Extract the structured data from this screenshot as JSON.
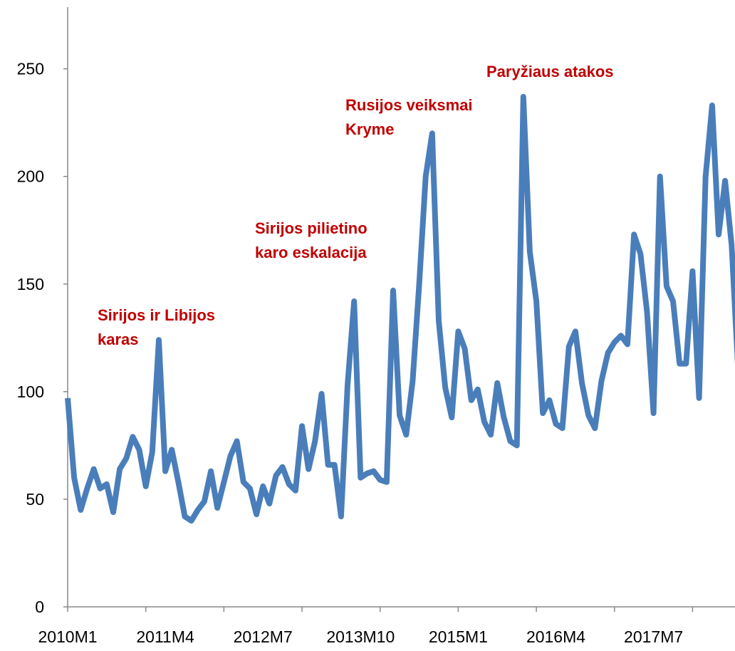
{
  "chart_data": {
    "type": "line",
    "categories": [
      "2010M1",
      null,
      null,
      null,
      null,
      null,
      null,
      null,
      null,
      null,
      null,
      null,
      null,
      null,
      null,
      "2011M4",
      null,
      null,
      null,
      null,
      null,
      null,
      null,
      null,
      null,
      null,
      null,
      null,
      null,
      null,
      "2012M7",
      null,
      null,
      null,
      null,
      null,
      null,
      null,
      null,
      null,
      null,
      null,
      null,
      null,
      null,
      "2013M10",
      null,
      null,
      null,
      null,
      null,
      null,
      null,
      null,
      null,
      null,
      null,
      null,
      null,
      null,
      "2015M1",
      null,
      null,
      null,
      null,
      null,
      null,
      null,
      null,
      null,
      null,
      null,
      null,
      null,
      null,
      "2016M4",
      null,
      null,
      null,
      null,
      null,
      null,
      null,
      null,
      null,
      null,
      null,
      null,
      null,
      null,
      "2017M7",
      null,
      null,
      null,
      null,
      null,
      null,
      null,
      null,
      null,
      null,
      null,
      null,
      null
    ],
    "series": [
      {
        "color": "#4a7ebb",
        "values": [
          97,
          60,
          45,
          55,
          64,
          55,
          57,
          44,
          64,
          69,
          79,
          73,
          56,
          72,
          124,
          63,
          73,
          58,
          42,
          40,
          45,
          49,
          63,
          46,
          58,
          70,
          77,
          58,
          55,
          43,
          56,
          48,
          61,
          65,
          57,
          54,
          84,
          64,
          77,
          99,
          66,
          66,
          42,
          103,
          142,
          60,
          62,
          63,
          59,
          58,
          147,
          89,
          80,
          105,
          150,
          200,
          220,
          133,
          102,
          88,
          128,
          120,
          96,
          101,
          86,
          80,
          104,
          88,
          77,
          75,
          237,
          165,
          142,
          90,
          96,
          85,
          83,
          121,
          128,
          104,
          89,
          83,
          105,
          118,
          123,
          126,
          122,
          173,
          164,
          137,
          90,
          200,
          149,
          142,
          113,
          113,
          156,
          97,
          200,
          233,
          173,
          198,
          168,
          110
        ]
      }
    ],
    "ylim": [
      0,
      280
    ],
    "yticks": [
      0,
      50,
      100,
      150,
      200,
      250
    ],
    "annotations": [
      {
        "lines": [
          "Sirijos ir Libijos",
          "karas"
        ]
      },
      {
        "lines": [
          "Sirijos pilietino",
          "karo eskalacija"
        ]
      },
      {
        "lines": [
          "Rusijos veiksmai",
          "Kryme"
        ]
      },
      {
        "lines": [
          "Paryžiaus atakos"
        ]
      }
    ]
  }
}
